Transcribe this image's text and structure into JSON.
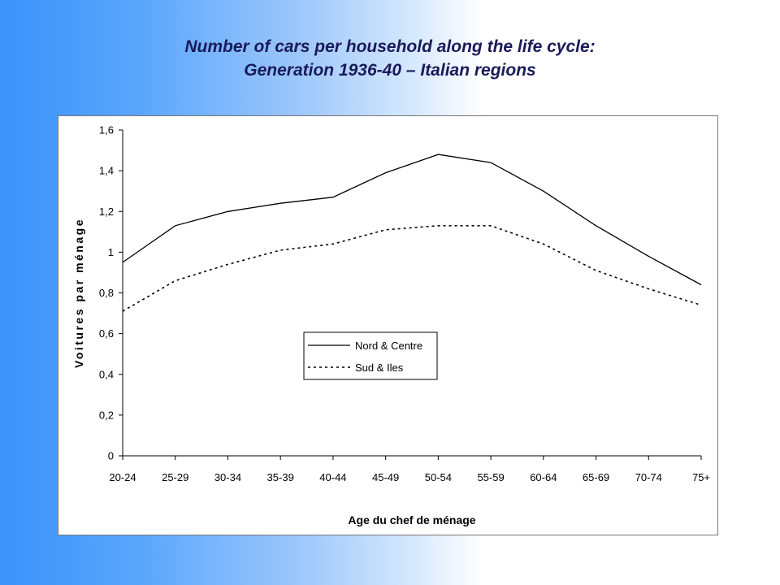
{
  "slide": {
    "title_line1": "Number of cars per household along the life cycle:",
    "title_line2": "Generation 1936-40 – Italian regions"
  },
  "chart_data": {
    "type": "line",
    "categories": [
      "20-24",
      "25-29",
      "30-34",
      "35-39",
      "40-44",
      "45-49",
      "50-54",
      "55-59",
      "60-64",
      "65-69",
      "70-74",
      "75+"
    ],
    "series": [
      {
        "name": "Nord & Centre",
        "values": [
          0.95,
          1.13,
          1.2,
          1.24,
          1.27,
          1.39,
          1.48,
          1.44,
          1.3,
          1.13,
          0.98,
          0.84
        ],
        "style": "solid"
      },
      {
        "name": "Sud & Iles",
        "values": [
          0.71,
          0.86,
          0.94,
          1.01,
          1.04,
          1.11,
          1.13,
          1.13,
          1.04,
          0.91,
          0.82,
          0.74
        ],
        "style": "dotted"
      }
    ],
    "xlabel": "Age du chef de ménage",
    "ylabel": "Voitures par ménage",
    "ylim": [
      0,
      1.6
    ],
    "yticks": [
      0,
      0.2,
      0.4,
      0.6,
      0.8,
      1,
      1.2,
      1.4,
      1.6
    ],
    "ytick_labels": [
      "0",
      "0,2",
      "0,4",
      "0,6",
      "0,8",
      "1",
      "1,2",
      "1,4",
      "1,6"
    ],
    "legend_position": "center-left",
    "grid": false,
    "line_color": "#000000"
  }
}
